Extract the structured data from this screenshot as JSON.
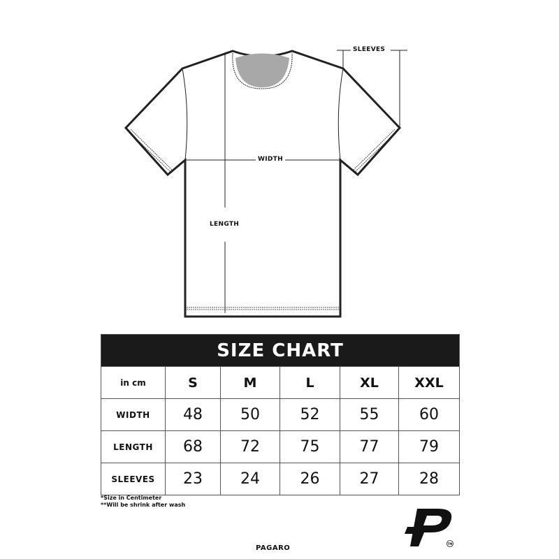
{
  "diagram": {
    "labels": {
      "sleeves": "SLEEVES",
      "width": "WIDTH",
      "length": "LENGTH"
    },
    "neck_color": "#a8a8a8"
  },
  "size_chart": {
    "title": "SIZE CHART",
    "unit_label": "in cm",
    "sizes": [
      "S",
      "M",
      "L",
      "XL",
      "XXL"
    ],
    "rows": [
      {
        "label": "WIDTH",
        "values": [
          "48",
          "50",
          "52",
          "55",
          "60"
        ]
      },
      {
        "label": "LENGTH",
        "values": [
          "68",
          "72",
          "75",
          "77",
          "79"
        ]
      },
      {
        "label": "SLEEVES",
        "values": [
          "23",
          "24",
          "26",
          "27",
          "28"
        ]
      }
    ],
    "header_color": "#1a1a1a"
  },
  "notes": [
    "*Size in Centimeter",
    "**Will be shrink after wash"
  ],
  "brand": {
    "name": "PAGARO",
    "logo": "P",
    "trademark": "TM"
  }
}
